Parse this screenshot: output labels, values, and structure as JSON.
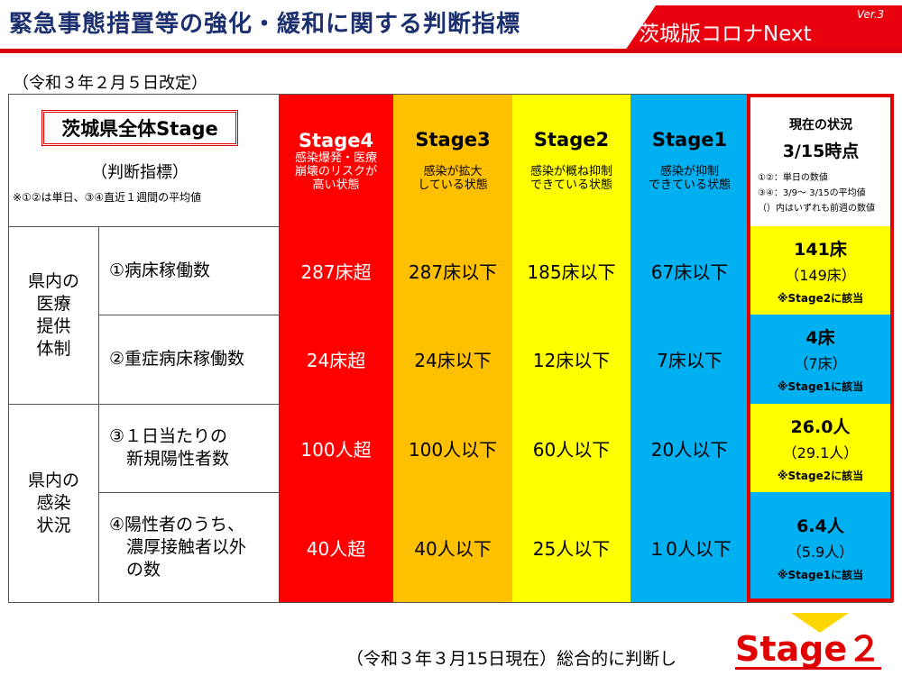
{
  "header": {
    "title": "緊急事態措置等の強化・緩和に関する判断指標",
    "brand": "茨城版コロナNext",
    "version": "Ver.3"
  },
  "revision": "（令和３年２月５日改定）",
  "table": {
    "all_stage_label": "茨城県全体Stage",
    "criteria_label": "（判断指標）",
    "average_note": "※①②は単日、③④直近１週間の平均値",
    "stages": [
      {
        "name": "Stage4",
        "desc": [
          "感染爆発・医療",
          "崩壊のリスクが",
          "高い状態"
        ]
      },
      {
        "name": "Stage3",
        "desc": [
          "感染が拡大",
          "している状態"
        ]
      },
      {
        "name": "Stage2",
        "desc": [
          "感染が概ね抑制",
          "できている状態"
        ]
      },
      {
        "name": "Stage1",
        "desc": [
          "感染が抑制",
          "できている状態"
        ]
      }
    ],
    "current_header": {
      "title": "現在の状況",
      "date": "3/15時点",
      "notes": [
        "①②：単日の数値",
        "③④：3/9～ 3/15の平均値",
        "（）内はいずれも前週の数値"
      ]
    },
    "groups": [
      {
        "label": [
          "県内の",
          "医療",
          "提供",
          "体制"
        ]
      },
      {
        "label": [
          "県内の",
          "感染",
          "状況"
        ]
      }
    ],
    "rows": [
      {
        "label": [
          "①病床稼働数"
        ],
        "values": [
          "287床超",
          "287床以下",
          "185床以下",
          "67床以下"
        ],
        "current": {
          "value": "141床",
          "previous": "（149床）",
          "note": "※Stage2に該当"
        }
      },
      {
        "label": [
          "②重症病床稼働数"
        ],
        "values": [
          "24床超",
          "24床以下",
          "12床以下",
          "7床以下"
        ],
        "current": {
          "value": "4床",
          "previous": "（7床）",
          "note": "※Stage1に該当"
        }
      },
      {
        "label": [
          "③１日当たりの",
          "　新規陽性者数"
        ],
        "values": [
          "100人超",
          "100人以下",
          "60人以下",
          "20人以下"
        ],
        "current": {
          "value": "26.0人",
          "previous": "（29.1人）",
          "note": "※Stage2に該当"
        }
      },
      {
        "label": [
          "④陽性者のうち、",
          "　濃厚接触者以外",
          "　の数"
        ],
        "values": [
          "40人超",
          "40人以下",
          "25人以下",
          "１0人以下"
        ],
        "current": {
          "value": "6.4人",
          "previous": "（5.9人）",
          "note": "※Stage1に該当"
        }
      }
    ]
  },
  "footer": {
    "summary": "（令和３年３月15日現在）総合的に判断し",
    "overall_stage": "Stage２"
  },
  "colors": {
    "title": "#1c2f6e",
    "brand_red": "#e8000f",
    "stage4": "#ff0000",
    "stage3": "#ffc000",
    "stage2": "#ffff00",
    "stage1": "#00b0f0",
    "highlight_frame": "#e00000",
    "arrow": "#ffd700"
  }
}
